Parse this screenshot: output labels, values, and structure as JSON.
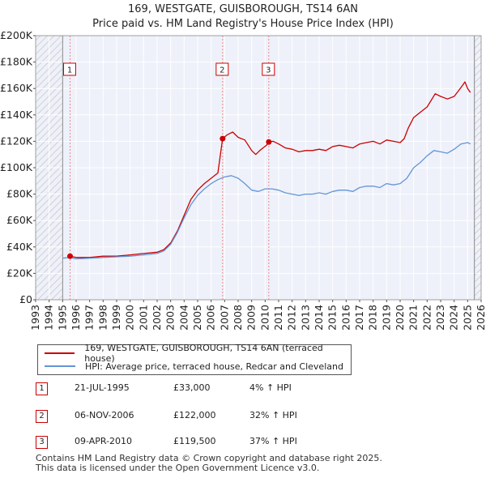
{
  "title_line1": "169, WESTGATE, GUISBOROUGH, TS14 6AN",
  "title_line2": "Price paid vs. HM Land Registry's House Price Index (HPI)",
  "colors": {
    "sold": "#cc0000",
    "hpi": "#6495d6",
    "hatch": "#d8d8d8",
    "plot_bg": "#eef1fa",
    "grid": "#ffffff"
  },
  "legend": {
    "sold_label": "169, WESTGATE, GUISBOROUGH, TS14 6AN (terraced house)",
    "hpi_label": "HPI: Average price, terraced house, Redcar and Cleveland"
  },
  "sales": [
    {
      "num": "1",
      "date": "21-JUL-1995",
      "price": "£33,000",
      "hpi": "4% ↑ HPI"
    },
    {
      "num": "2",
      "date": "06-NOV-2006",
      "price": "£122,000",
      "hpi": "32% ↑ HPI"
    },
    {
      "num": "3",
      "date": "09-APR-2010",
      "price": "£119,500",
      "hpi": "37% ↑ HPI"
    }
  ],
  "footer_line1": "Contains HM Land Registry data © Crown copyright and database right 2025.",
  "footer_line2": "This data is licensed under the Open Government Licence v3.0.",
  "chart_data": {
    "type": "line",
    "title": "169, WESTGATE, GUISBOROUGH, TS14 6AN",
    "subtitle": "Price paid vs. HM Land Registry's House Price Index (HPI)",
    "xlabel": "",
    "ylabel": "",
    "xlim": [
      1993,
      2026
    ],
    "ylim": [
      0,
      200000
    ],
    "x_ticks": [
      "1993",
      "1994",
      "1995",
      "1996",
      "1997",
      "1998",
      "1999",
      "2000",
      "2001",
      "2002",
      "2003",
      "2004",
      "2005",
      "2006",
      "2007",
      "2008",
      "2009",
      "2010",
      "2011",
      "2012",
      "2013",
      "2014",
      "2015",
      "2016",
      "2017",
      "2018",
      "2019",
      "2020",
      "2021",
      "2022",
      "2023",
      "2024",
      "2025",
      "2026"
    ],
    "y_ticks": [
      0,
      20000,
      40000,
      60000,
      80000,
      100000,
      120000,
      140000,
      160000,
      180000,
      200000
    ],
    "y_tick_labels": [
      "£0",
      "£20K",
      "£40K",
      "£60K",
      "£80K",
      "£100K",
      "£120K",
      "£140K",
      "£160K",
      "£180K",
      "£200K"
    ],
    "hatched_ranges": [
      [
        1993,
        1995.0
      ],
      [
        2025.5,
        2026
      ]
    ],
    "series": [
      {
        "name": "169, WESTGATE, GUISBOROUGH, TS14 6AN (terraced house)",
        "color": "#cc0000",
        "x": [
          1995.55,
          1996,
          1997,
          1998,
          1999,
          2000,
          2001,
          2002,
          2002.5,
          2003,
          2003.5,
          2004,
          2004.5,
          2005,
          2005.5,
          2006,
          2006.5,
          2006.85,
          2007.2,
          2007.6,
          2008,
          2008.5,
          2009,
          2009.3,
          2009.6,
          2010.1,
          2010.27,
          2010.6,
          2011,
          2011.5,
          2012,
          2012.5,
          2013,
          2013.5,
          2014,
          2014.5,
          2015,
          2015.5,
          2016,
          2016.5,
          2017,
          2017.5,
          2018,
          2018.5,
          2019,
          2019.5,
          2020,
          2020.3,
          2020.6,
          2021,
          2021.5,
          2022,
          2022.3,
          2022.6,
          2023,
          2023.5,
          2024,
          2024.3,
          2024.6,
          2024.8,
          2025,
          2025.2
        ],
        "y": [
          33000,
          32000,
          32000,
          33000,
          33000,
          34000,
          35000,
          36000,
          38000,
          43000,
          52000,
          64000,
          76000,
          83000,
          88000,
          92000,
          96000,
          122000,
          125000,
          127000,
          123000,
          121000,
          113000,
          110000,
          113000,
          117000,
          119500,
          120000,
          118000,
          115000,
          114000,
          112000,
          113000,
          113000,
          114000,
          113000,
          116000,
          117000,
          116000,
          115000,
          118000,
          119000,
          120000,
          118000,
          121000,
          120000,
          119000,
          122000,
          130000,
          138000,
          142000,
          146000,
          151000,
          156000,
          154000,
          152000,
          154000,
          158000,
          162000,
          165000,
          160000,
          157000
        ]
      },
      {
        "name": "HPI: Average price, terraced house, Redcar and Cleveland",
        "color": "#6495d6",
        "x": [
          1995,
          1995.5,
          1996,
          1997,
          1998,
          1999,
          2000,
          2001,
          2002,
          2002.5,
          2003,
          2003.5,
          2004,
          2004.5,
          2005,
          2005.5,
          2006,
          2006.5,
          2007,
          2007.5,
          2008,
          2008.5,
          2009,
          2009.5,
          2010,
          2010.5,
          2011,
          2011.5,
          2012,
          2012.5,
          2013,
          2013.5,
          2014,
          2014.5,
          2015,
          2015.5,
          2016,
          2016.5,
          2017,
          2017.5,
          2018,
          2018.5,
          2019,
          2019.5,
          2020,
          2020.5,
          2021,
          2021.5,
          2022,
          2022.5,
          2023,
          2023.5,
          2024,
          2024.5,
          2025,
          2025.2
        ],
        "y": [
          31500,
          32000,
          31000,
          31500,
          32000,
          32500,
          33000,
          34000,
          35000,
          37000,
          42000,
          51000,
          62000,
          72000,
          79000,
          84000,
          88000,
          91000,
          93000,
          94000,
          92000,
          88000,
          83000,
          82000,
          84000,
          84000,
          83000,
          81000,
          80000,
          79000,
          80000,
          80000,
          81000,
          80000,
          82000,
          83000,
          83000,
          82000,
          85000,
          86000,
          86000,
          85000,
          88000,
          87000,
          88000,
          92000,
          100000,
          104000,
          109000,
          113000,
          112000,
          111000,
          114000,
          118000,
          119000,
          118000
        ]
      }
    ],
    "sale_markers": [
      {
        "label": "1",
        "x": 1995.55,
        "y": 33000
      },
      {
        "label": "2",
        "x": 2006.85,
        "y": 122000
      },
      {
        "label": "3",
        "x": 2010.27,
        "y": 119500
      }
    ]
  }
}
